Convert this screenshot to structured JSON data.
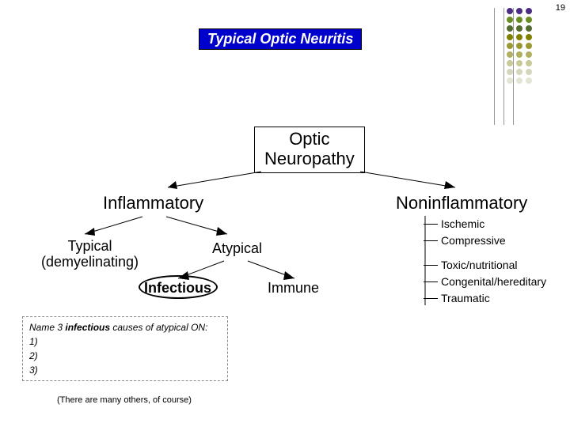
{
  "page_number": "19",
  "title": "Typical Optic Neuritis",
  "title_box": {
    "bg": "#0000cc",
    "text_color": "#ffffff"
  },
  "dot_grid": {
    "rows": [
      [
        "#4b2e83",
        "#4b2e83",
        "#4b2e83"
      ],
      [
        "#6b8e23",
        "#6b8e23",
        "#6b8e23"
      ],
      [
        "#556b2f",
        "#556b2f",
        "#556b2f"
      ],
      [
        "#808000",
        "#808000",
        "#808000"
      ],
      [
        "#999933",
        "#999933",
        "#999933"
      ],
      [
        "#b0b060",
        "#b0b060",
        "#b0b060"
      ],
      [
        "#c9c99a",
        "#c9c99a",
        "#c9c99a"
      ],
      [
        "#d6d6bd",
        "#d6d6bd",
        "#d6d6bd"
      ],
      [
        "#e4e4d5",
        "#e4e4d5",
        "#e4e4d5"
      ]
    ],
    "vlines_x": [
      624,
      636,
      648
    ]
  },
  "root": {
    "line1": "Optic",
    "line2": "Neuropathy"
  },
  "inflammatory": "Inflammatory",
  "noninflammatory": "Noninflammatory",
  "typical": {
    "line1": "Typical",
    "line2": "(demyelinating)"
  },
  "atypical": "Atypical",
  "infectious": "Infectious",
  "immune": "Immune",
  "noninf_list": [
    "Ischemic",
    "Compressive",
    "Toxic/nutritional",
    "Congenital/hereditary",
    "Traumatic"
  ],
  "question": {
    "prompt_a": "Name 3 ",
    "prompt_b": "infectious",
    "prompt_c": " causes of atypical ON:",
    "n1": "1)",
    "n2": "2)",
    "n3": "3)"
  },
  "footnote": "(There are many others, of course)"
}
